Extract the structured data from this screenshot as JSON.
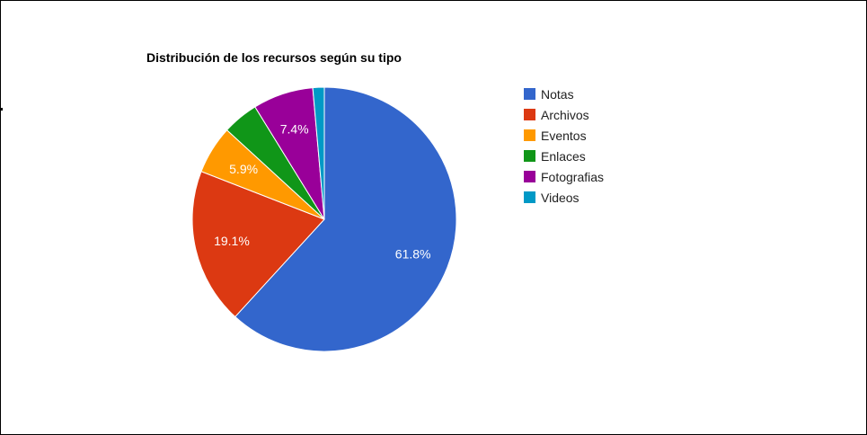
{
  "chart_data": {
    "type": "pie",
    "title": "Distribución de los recursos según su tipo",
    "slices": [
      {
        "name": "Notas",
        "value": 61.8,
        "label": "61.8%",
        "color": "#3366cc"
      },
      {
        "name": "Archivos",
        "value": 19.1,
        "label": "19.1%",
        "color": "#dc3912"
      },
      {
        "name": "Eventos",
        "value": 5.9,
        "label": "5.9%",
        "color": "#ff9900"
      },
      {
        "name": "Enlaces",
        "value": 4.4,
        "label": "",
        "color": "#109618"
      },
      {
        "name": "Fotografias",
        "value": 7.4,
        "label": "7.4%",
        "color": "#990099"
      },
      {
        "name": "Videos",
        "value": 1.4,
        "label": "",
        "color": "#0099c6"
      }
    ],
    "legend_position": "right"
  }
}
